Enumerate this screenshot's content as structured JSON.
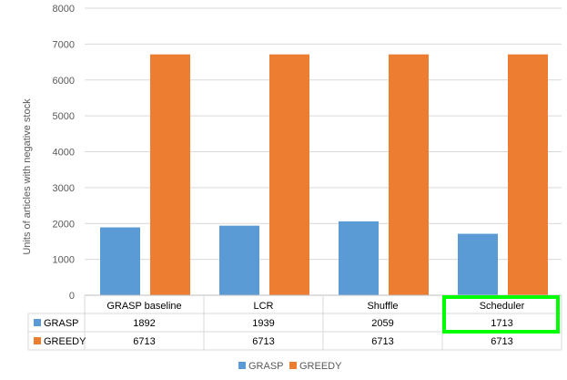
{
  "chart_data": {
    "type": "bar",
    "categories": [
      "GRASP baseline",
      "LCR",
      "Shuffle",
      "Scheduler"
    ],
    "series": [
      {
        "name": "GRASP",
        "values": [
          1892,
          1939,
          2059,
          1713
        ],
        "color": "#5b9bd5"
      },
      {
        "name": "GREEDY",
        "values": [
          6713,
          6713,
          6713,
          6713
        ],
        "color": "#ed7d31"
      }
    ],
    "ylabel": "Units of articles with negative stock",
    "ylim": [
      0,
      8000
    ],
    "yticks": [
      0,
      1000,
      2000,
      3000,
      4000,
      5000,
      6000,
      7000,
      8000
    ],
    "grid": true,
    "data_table": true,
    "legend": "bottom",
    "highlight": {
      "category": "Scheduler",
      "color": "#00ff00"
    }
  }
}
